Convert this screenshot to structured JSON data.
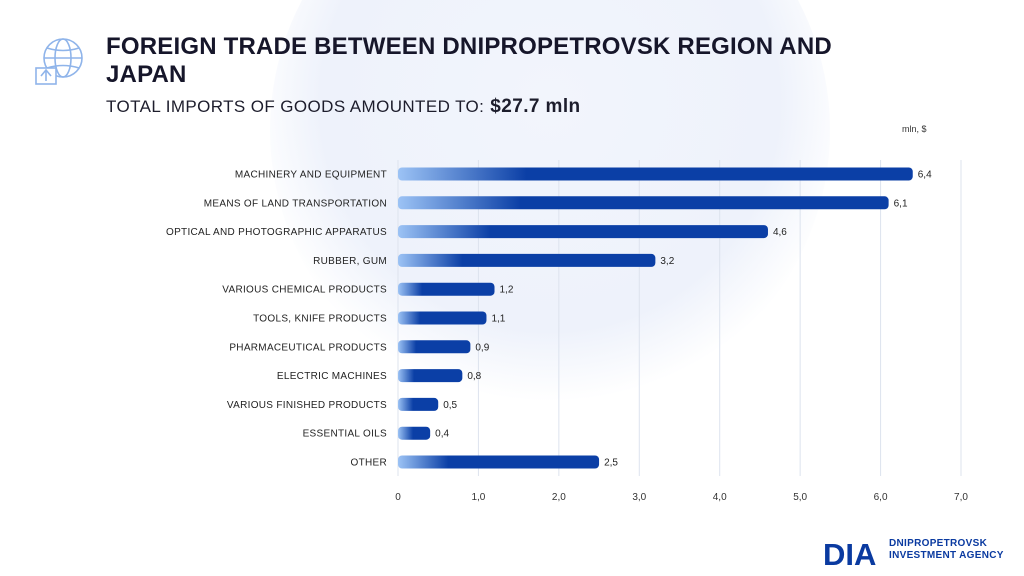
{
  "header": {
    "title": "FOREIGN TRADE BETWEEN DNIPROPETROVSK REGION AND JAPAN",
    "subtitle_label": "TOTAL IMPORTS OF GOODS AMOUNTED TO:",
    "subtitle_value": "$27.7 mln"
  },
  "unit_label": "mln, $",
  "logo": {
    "mark": "DIA",
    "line1": "DNIPROPETROVSK",
    "line2": "INVESTMENT AGENCY"
  },
  "colors": {
    "bar_start": "#9cc3f5",
    "bar_end": "#0b3fa6",
    "title": "#16162a"
  },
  "chart_data": {
    "type": "bar",
    "orientation": "horizontal",
    "categories": [
      "MACHINERY AND EQUIPMENT",
      "MEANS OF LAND TRANSPORTATION",
      "OPTICAL AND PHOTOGRAPHIC APPARATUS",
      "RUBBER, GUM",
      "VARIOUS CHEMICAL PRODUCTS",
      "TOOLS, KNIFE PRODUCTS",
      "PHARMACEUTICAL PRODUCTS",
      "ELECTRIC MACHINES",
      "VARIOUS FINISHED PRODUCTS",
      "ESSENTIAL OILS",
      "OTHER"
    ],
    "values": [
      6.4,
      6.1,
      4.6,
      3.2,
      1.2,
      1.1,
      0.9,
      0.8,
      0.5,
      0.4,
      2.5
    ],
    "value_labels": [
      "6,4",
      "6,1",
      "4,6",
      "3,2",
      "1,2",
      "1,1",
      "0,9",
      "0,8",
      "0,5",
      "0,4",
      "2,5"
    ],
    "xlim": [
      0,
      7
    ],
    "x_ticks": [
      0,
      1,
      2,
      3,
      4,
      5,
      6,
      7
    ],
    "x_tick_labels": [
      "0",
      "1,0",
      "2,0",
      "3,0",
      "4,0",
      "5,0",
      "6,0",
      "7,0"
    ],
    "grid": true
  }
}
